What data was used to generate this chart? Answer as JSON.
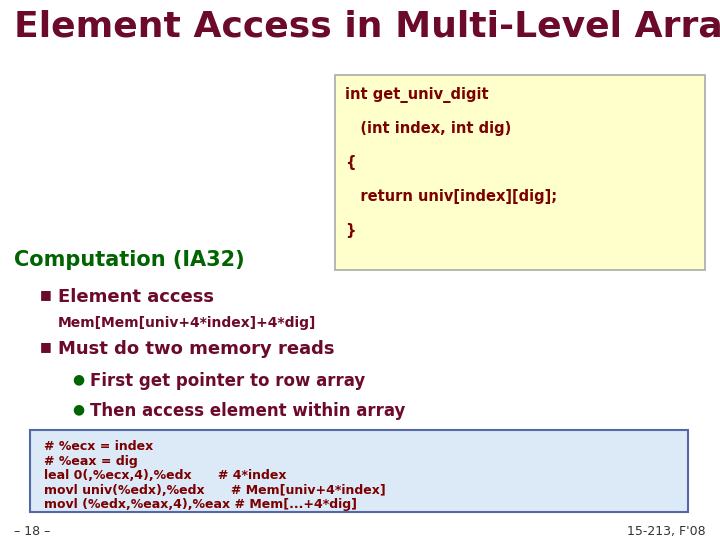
{
  "title": "Element Access in Multi-Level Array",
  "title_color": "#6B0A2A",
  "bg_color": "#FFFFFF",
  "subtitle": "Computation (IA32)",
  "subtitle_color": "#006400",
  "code_box_color": "#FFFFCC",
  "code_box_border": "#AAAAAA",
  "code_lines": [
    "int get_univ_digit",
    "   (int index, int dig)",
    "{",
    "   return univ[index][dig];",
    "}"
  ],
  "code_text_color": "#7B0000",
  "bullet_color": "#6B0A2A",
  "bullet1_label": "Element access",
  "bullet1_mono": "Mem[Mem[univ+4*index]+4*dig]",
  "bullet2_label": "Must do two memory reads",
  "sub_bullet1": "First get pointer to row array",
  "sub_bullet2": "Then access element within array",
  "sub_bullet_dot_color": "#006400",
  "asm_box_bg": "#DCE9F7",
  "asm_box_border": "#5566AA",
  "asm_lines": [
    "# %ecx = index",
    "# %eax = dig",
    "leal 0(,%ecx,4),%edx      # 4*index",
    "movl univ(%edx),%edx      # Mem[univ+4*index]",
    "movl (%edx,%eax,4),%eax # Mem[...+4*dig]"
  ],
  "footer_left": "– 18 –",
  "footer_right": "15-213, F'08",
  "footer_color": "#333333"
}
